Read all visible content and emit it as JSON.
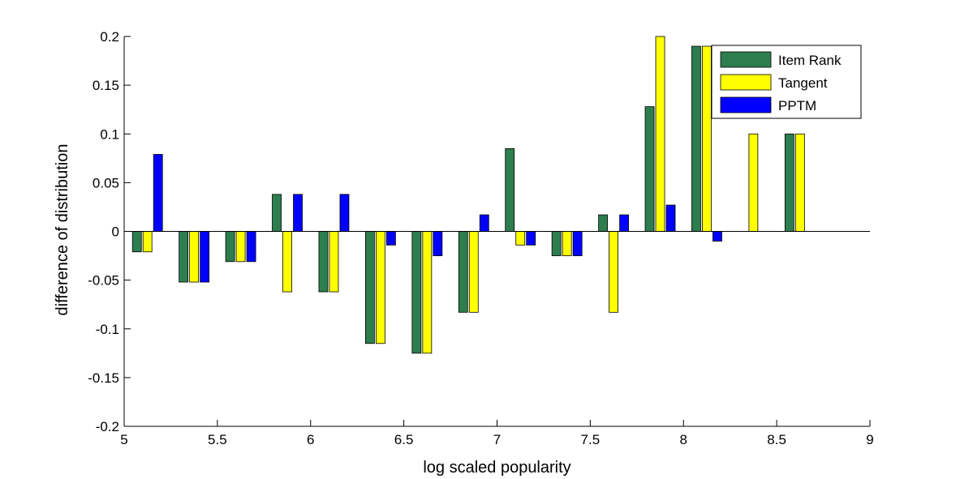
{
  "chart_data": {
    "type": "bar",
    "xlabel": "log scaled popularity",
    "ylabel": "difference of distribution",
    "xlim": [
      5,
      9
    ],
    "ylim": [
      -0.2,
      0.2
    ],
    "xticks": [
      "5",
      "5.5",
      "6",
      "6.5",
      "7",
      "7.5",
      "8",
      "8.5",
      "9"
    ],
    "yticks": [
      "-0.2",
      "-0.15",
      "-0.1",
      "-0.05",
      "0",
      "0.05",
      "0.1",
      "0.15",
      "0.2"
    ],
    "legend_position": "top-right",
    "x": [
      5.125,
      5.375,
      5.625,
      5.875,
      6.125,
      6.375,
      6.625,
      6.875,
      7.125,
      7.375,
      7.625,
      7.875,
      8.125,
      8.375,
      8.625
    ],
    "series": [
      {
        "name": "Item Rank",
        "color": "#2e7d4f",
        "values": [
          -0.021,
          -0.052,
          -0.031,
          0.038,
          -0.062,
          -0.115,
          -0.125,
          -0.083,
          0.085,
          -0.025,
          0.017,
          0.128,
          0.19,
          0,
          0.1
        ]
      },
      {
        "name": "Tangent",
        "color": "#ffff00",
        "values": [
          -0.021,
          -0.052,
          -0.031,
          -0.062,
          -0.062,
          -0.115,
          -0.125,
          -0.083,
          -0.014,
          -0.025,
          -0.083,
          0.2,
          0.19,
          0.1,
          0.1
        ]
      },
      {
        "name": "PPTM",
        "color": "#0000ff",
        "values": [
          0.079,
          -0.052,
          -0.031,
          0.038,
          0.038,
          -0.014,
          -0.025,
          0.017,
          -0.014,
          -0.025,
          0.017,
          0.027,
          -0.01,
          0,
          0
        ]
      }
    ]
  }
}
